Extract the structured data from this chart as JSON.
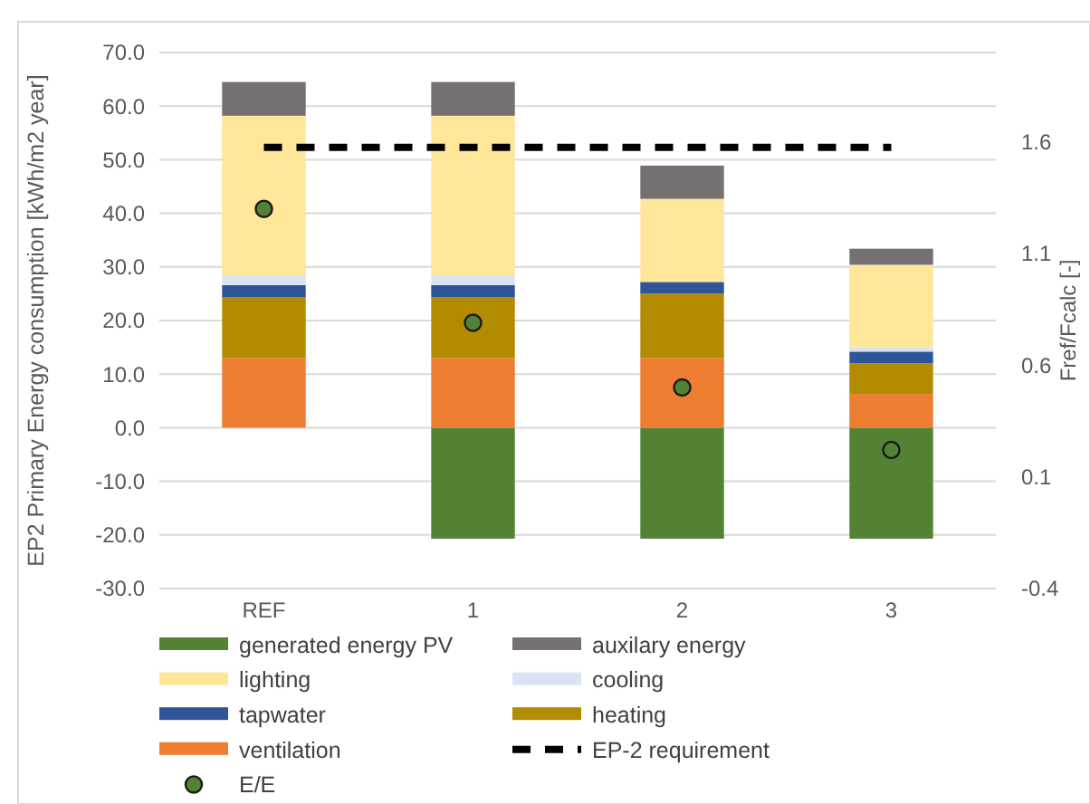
{
  "chart_data": {
    "type": "bar",
    "stacked": true,
    "categories": [
      "REF",
      "1",
      "2",
      "3"
    ],
    "ylabel": "EP2 Primary Energy consumption [kWh/m2 year]",
    "y2label": "Fref/Fcalc [-]",
    "ylim": [
      -30,
      70
    ],
    "yticks": [
      {
        "value": -30,
        "label": "-30.0"
      },
      {
        "value": -20,
        "label": "-20.0"
      },
      {
        "value": -10,
        "label": "-10.0"
      },
      {
        "value": 0,
        "label": "0.0"
      },
      {
        "value": 10,
        "label": "10.0"
      },
      {
        "value": 20,
        "label": "20.0"
      },
      {
        "value": 30,
        "label": "30.0"
      },
      {
        "value": 40,
        "label": "40.0"
      },
      {
        "value": 50,
        "label": "50.0"
      },
      {
        "value": 60,
        "label": "60.0"
      },
      {
        "value": 70,
        "label": "70.0"
      }
    ],
    "y2lim": [
      -0.4,
      2.0
    ],
    "y2ticks": [
      -0.4,
      0.1,
      0.6,
      1.1,
      1.6
    ],
    "grid": "y",
    "legend": "bottom",
    "series": [
      {
        "name": "generated energy PV",
        "color": "#548235",
        "values": [
          0,
          -20.7,
          -20.7,
          -20.7
        ]
      },
      {
        "name": "ventilation",
        "color": "#ed7d31",
        "values": [
          13,
          13,
          13,
          6.3
        ]
      },
      {
        "name": "heating",
        "color": "#b38b00",
        "values": [
          11.3,
          11.3,
          12,
          5.7
        ]
      },
      {
        "name": "tapwater",
        "color": "#2f5597",
        "values": [
          2.3,
          2.3,
          2.2,
          2.2
        ]
      },
      {
        "name": "cooling",
        "color": "#dae3f3",
        "values": [
          1.7,
          1.7,
          0,
          0.8
        ]
      },
      {
        "name": "lighting",
        "color": "#ffe699",
        "values": [
          29.9,
          29.9,
          15.5,
          15.4
        ]
      },
      {
        "name": "auxilary energy",
        "color": "#767171",
        "values": [
          6.3,
          6.3,
          6.2,
          3
        ]
      },
      {
        "name": "EP-2 requirement",
        "type": "line",
        "color": "#000000",
        "line_style": "dashed",
        "marker": "none",
        "values": [
          52.3,
          52.3,
          52.3,
          52.3
        ]
      },
      {
        "name": "E/E",
        "type": "scatter",
        "axis": "y2",
        "color": "#548235",
        "marker": "circle",
        "values": [
          1.3,
          0.79,
          0.5,
          0.22
        ]
      }
    ]
  }
}
